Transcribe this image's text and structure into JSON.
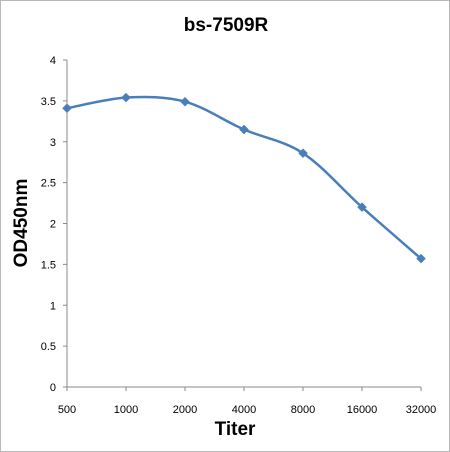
{
  "chart_data": {
    "type": "line",
    "title": "bs-7509R",
    "xlabel": "Titer",
    "ylabel": "OD450nm",
    "categories": [
      "500",
      "1000",
      "2000",
      "4000",
      "8000",
      "16000",
      "32000"
    ],
    "series": [
      {
        "values": [
          3.41,
          3.54,
          3.49,
          3.15,
          2.86,
          2.2,
          1.57
        ],
        "color": "#4a7ebb",
        "marker": "diamond",
        "smooth": true
      }
    ],
    "ylim": [
      0,
      4
    ],
    "yticks": [
      "0",
      "0.5",
      "1",
      "1.5",
      "2",
      "2.5",
      "3",
      "3.5",
      "4"
    ],
    "grid": false,
    "legend": "none"
  }
}
